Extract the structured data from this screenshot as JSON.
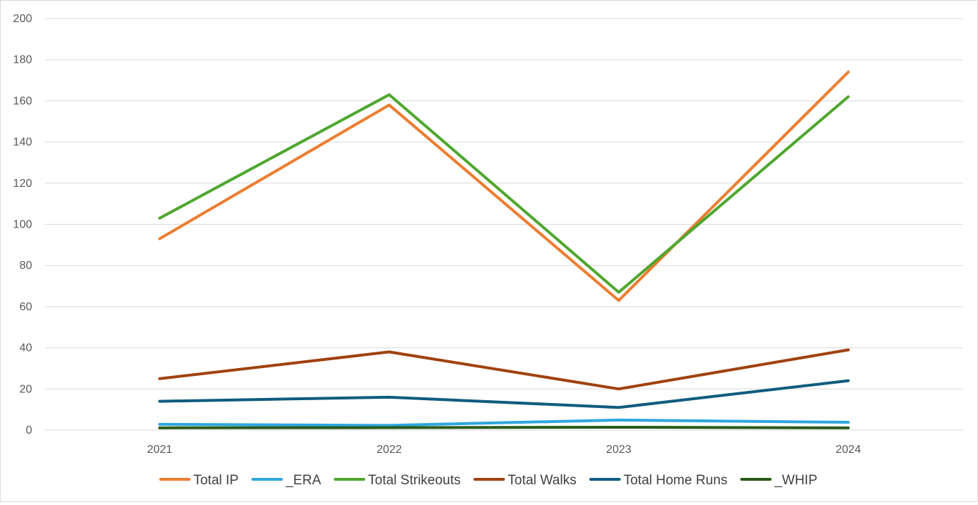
{
  "chart_data": {
    "type": "line",
    "title": "",
    "xlabel": "",
    "ylabel": "",
    "categories": [
      "2021",
      "2022",
      "2023",
      "2024"
    ],
    "ylim": [
      0,
      200
    ],
    "yticks": [
      0,
      20,
      40,
      60,
      80,
      100,
      120,
      140,
      160,
      180,
      200
    ],
    "grid": true,
    "legend_position": "bottom",
    "series": [
      {
        "name": "Total IP",
        "color": "#ED7D31",
        "values": [
          93,
          158,
          63,
          174
        ]
      },
      {
        "name": "_ERA",
        "color": "#2EA6DE",
        "values": [
          2.8,
          2.3,
          4.9,
          3.8
        ]
      },
      {
        "name": "Total Strikeouts",
        "color": "#4EA72E",
        "values": [
          103,
          163,
          67,
          162
        ]
      },
      {
        "name": "Total Walks",
        "color": "#A0420F",
        "values": [
          25,
          38,
          20,
          39
        ]
      },
      {
        "name": "Total Home Runs",
        "color": "#0F5C7F",
        "values": [
          14,
          16,
          11,
          24
        ]
      },
      {
        "name": "_WHIP",
        "color": "#2A5B1A",
        "values": [
          1.1,
          1.2,
          1.4,
          1.1
        ]
      }
    ]
  }
}
